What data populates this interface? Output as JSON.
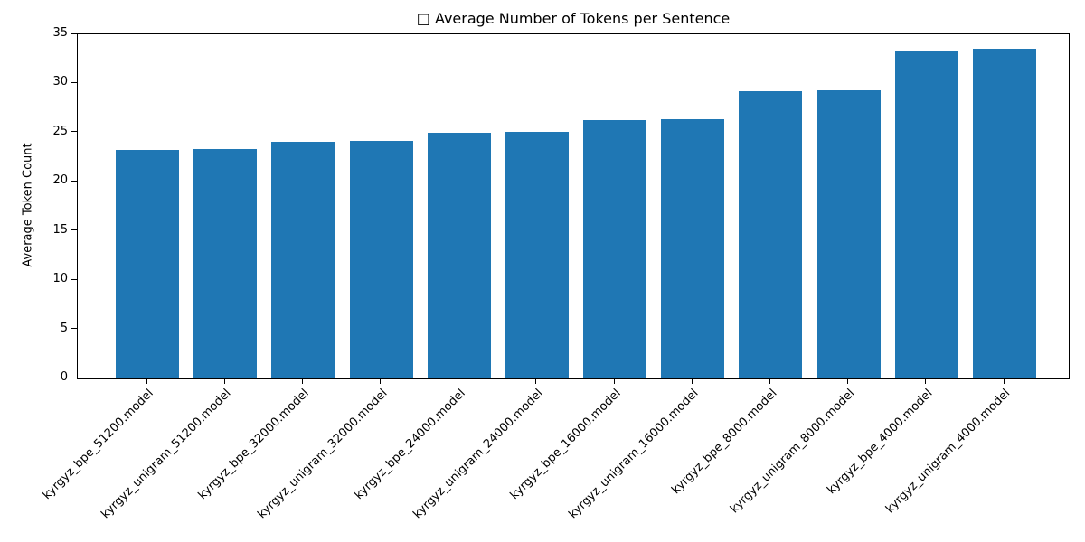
{
  "figure": {
    "title": "□ Average Number of Tokens per Sentence",
    "background_color": "#ffffff",
    "text_color": "#000000",
    "spine_color": "#000000"
  },
  "chart_data": {
    "type": "bar",
    "title": "□ Average Number of Tokens per Sentence",
    "xlabel": "",
    "ylabel": "Average Token Count",
    "categories": [
      "kyrgyz_bpe_51200.model",
      "kyrgyz_unigram_51200.model",
      "kyrgyz_bpe_32000.model",
      "kyrgyz_unigram_32000.model",
      "kyrgyz_bpe_24000.model",
      "kyrgyz_unigram_24000.model",
      "kyrgyz_bpe_16000.model",
      "kyrgyz_unigram_16000.model",
      "kyrgyz_bpe_8000.model",
      "kyrgyz_unigram_8000.model",
      "kyrgyz_bpe_4000.model",
      "kyrgyz_unigram_4000.model"
    ],
    "values": [
      23.2,
      23.3,
      24.1,
      24.2,
      25.0,
      25.1,
      26.3,
      26.4,
      29.2,
      29.3,
      33.3,
      33.5
    ],
    "ylim": [
      0,
      35
    ],
    "yticks": [
      0,
      5,
      10,
      15,
      20,
      25,
      30,
      35
    ],
    "bar_color": "#1f77b4",
    "grid": false,
    "legend": null,
    "x_tick_rotation_deg": 45
  }
}
